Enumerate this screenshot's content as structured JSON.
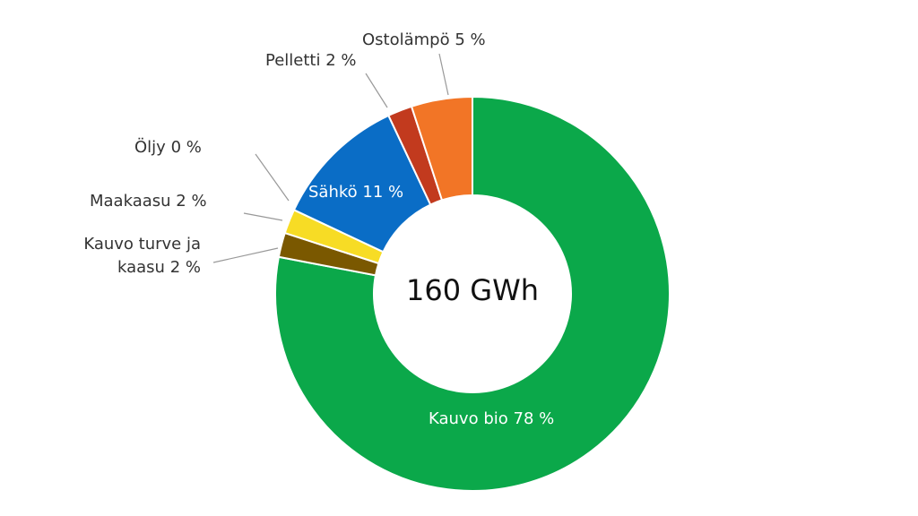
{
  "chart_data": {
    "type": "pie",
    "center_label": "160 GWh",
    "categories": [
      "Kauvo bio",
      "Kauvo turve ja kaasu",
      "Maakaasu",
      "Öljy",
      "Sähkö",
      "Pelletti",
      "Ostolämpö"
    ],
    "values": [
      78,
      2,
      2,
      0,
      11,
      2,
      5
    ],
    "value_labels": [
      "78 %",
      "2 %",
      "2 %",
      "0 %",
      "11 %",
      "2 %",
      "5 %"
    ],
    "colors": [
      "#0ba84a",
      "#7a5800",
      "#f7dc25",
      "#555555",
      "#0a6dc6",
      "#c23a1e",
      "#f27526"
    ]
  }
}
